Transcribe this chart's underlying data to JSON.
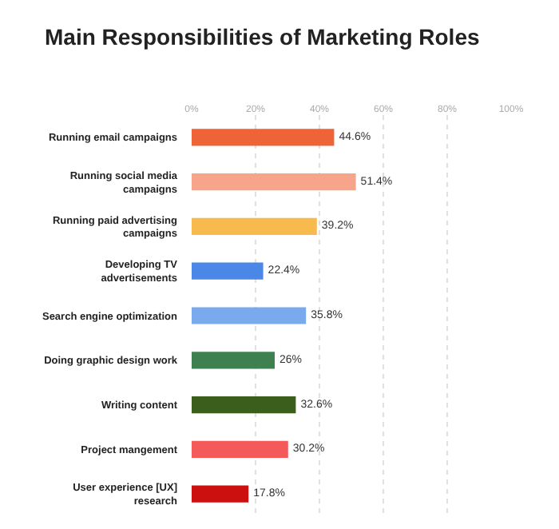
{
  "chart_data": {
    "type": "bar",
    "orientation": "horizontal",
    "title": "Main Responsibilities of Marketing Roles",
    "categories": [
      "Running email campaigns",
      "Running social media campaigns",
      "Running paid advertising campaigns",
      "Developing TV advertisements",
      "Search engine optimization",
      "Doing graphic design work",
      "Writing content",
      "Project mangement",
      "User experience [UX] research"
    ],
    "values": [
      44.6,
      51.4,
      39.2,
      22.4,
      35.8,
      26,
      32.6,
      30.2,
      17.8
    ],
    "value_labels": [
      "44.6%",
      "51.4%",
      "39.2%",
      "22.4%",
      "35.8%",
      "26%",
      "32.6%",
      "30.2%",
      "17.8%"
    ],
    "colors": [
      "#ee6436",
      "#f7a58a",
      "#f8b94d",
      "#4a87e6",
      "#7aaaee",
      "#3f8050",
      "#3c5e1c",
      "#f55a5a",
      "#cc1010"
    ],
    "xlim": [
      0,
      100
    ],
    "xticks": [
      {
        "value": 0,
        "label": "0%"
      },
      {
        "value": 20,
        "label": "20%"
      },
      {
        "value": 40,
        "label": "40%"
      },
      {
        "value": 60,
        "label": "60%"
      },
      {
        "value": 80,
        "label": "80%"
      },
      {
        "value": 100,
        "label": "100%"
      }
    ],
    "grid": "x",
    "legend": false
  }
}
